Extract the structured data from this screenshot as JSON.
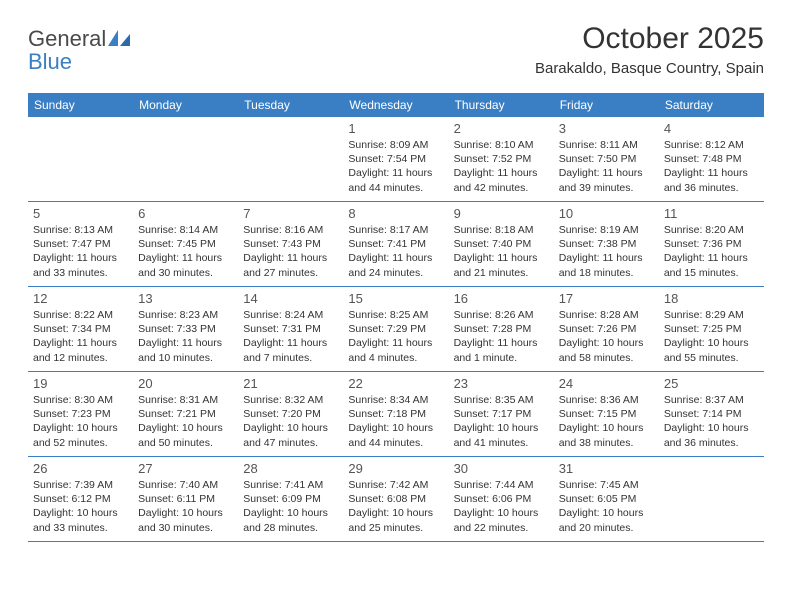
{
  "logo": {
    "text_gray": "General",
    "text_blue": "Blue"
  },
  "title": "October 2025",
  "location": "Barakaldo, Basque Country, Spain",
  "colors": {
    "header_bg": "#3a7fc4",
    "header_text": "#ffffff",
    "row_border": "#3a7fc4",
    "day_num": "#555555",
    "body_text": "#333333",
    "logo_gray": "#4a4a4a",
    "logo_blue": "#3a7fc4"
  },
  "day_headers": [
    "Sunday",
    "Monday",
    "Tuesday",
    "Wednesday",
    "Thursday",
    "Friday",
    "Saturday"
  ],
  "weeks": [
    [
      {
        "n": "",
        "sr": "",
        "ss": "",
        "dl": ""
      },
      {
        "n": "",
        "sr": "",
        "ss": "",
        "dl": ""
      },
      {
        "n": "",
        "sr": "",
        "ss": "",
        "dl": ""
      },
      {
        "n": "1",
        "sr": "Sunrise: 8:09 AM",
        "ss": "Sunset: 7:54 PM",
        "dl": "Daylight: 11 hours and 44 minutes."
      },
      {
        "n": "2",
        "sr": "Sunrise: 8:10 AM",
        "ss": "Sunset: 7:52 PM",
        "dl": "Daylight: 11 hours and 42 minutes."
      },
      {
        "n": "3",
        "sr": "Sunrise: 8:11 AM",
        "ss": "Sunset: 7:50 PM",
        "dl": "Daylight: 11 hours and 39 minutes."
      },
      {
        "n": "4",
        "sr": "Sunrise: 8:12 AM",
        "ss": "Sunset: 7:48 PM",
        "dl": "Daylight: 11 hours and 36 minutes."
      }
    ],
    [
      {
        "n": "5",
        "sr": "Sunrise: 8:13 AM",
        "ss": "Sunset: 7:47 PM",
        "dl": "Daylight: 11 hours and 33 minutes."
      },
      {
        "n": "6",
        "sr": "Sunrise: 8:14 AM",
        "ss": "Sunset: 7:45 PM",
        "dl": "Daylight: 11 hours and 30 minutes."
      },
      {
        "n": "7",
        "sr": "Sunrise: 8:16 AM",
        "ss": "Sunset: 7:43 PM",
        "dl": "Daylight: 11 hours and 27 minutes."
      },
      {
        "n": "8",
        "sr": "Sunrise: 8:17 AM",
        "ss": "Sunset: 7:41 PM",
        "dl": "Daylight: 11 hours and 24 minutes."
      },
      {
        "n": "9",
        "sr": "Sunrise: 8:18 AM",
        "ss": "Sunset: 7:40 PM",
        "dl": "Daylight: 11 hours and 21 minutes."
      },
      {
        "n": "10",
        "sr": "Sunrise: 8:19 AM",
        "ss": "Sunset: 7:38 PM",
        "dl": "Daylight: 11 hours and 18 minutes."
      },
      {
        "n": "11",
        "sr": "Sunrise: 8:20 AM",
        "ss": "Sunset: 7:36 PM",
        "dl": "Daylight: 11 hours and 15 minutes."
      }
    ],
    [
      {
        "n": "12",
        "sr": "Sunrise: 8:22 AM",
        "ss": "Sunset: 7:34 PM",
        "dl": "Daylight: 11 hours and 12 minutes."
      },
      {
        "n": "13",
        "sr": "Sunrise: 8:23 AM",
        "ss": "Sunset: 7:33 PM",
        "dl": "Daylight: 11 hours and 10 minutes."
      },
      {
        "n": "14",
        "sr": "Sunrise: 8:24 AM",
        "ss": "Sunset: 7:31 PM",
        "dl": "Daylight: 11 hours and 7 minutes."
      },
      {
        "n": "15",
        "sr": "Sunrise: 8:25 AM",
        "ss": "Sunset: 7:29 PM",
        "dl": "Daylight: 11 hours and 4 minutes."
      },
      {
        "n": "16",
        "sr": "Sunrise: 8:26 AM",
        "ss": "Sunset: 7:28 PM",
        "dl": "Daylight: 11 hours and 1 minute."
      },
      {
        "n": "17",
        "sr": "Sunrise: 8:28 AM",
        "ss": "Sunset: 7:26 PM",
        "dl": "Daylight: 10 hours and 58 minutes."
      },
      {
        "n": "18",
        "sr": "Sunrise: 8:29 AM",
        "ss": "Sunset: 7:25 PM",
        "dl": "Daylight: 10 hours and 55 minutes."
      }
    ],
    [
      {
        "n": "19",
        "sr": "Sunrise: 8:30 AM",
        "ss": "Sunset: 7:23 PM",
        "dl": "Daylight: 10 hours and 52 minutes."
      },
      {
        "n": "20",
        "sr": "Sunrise: 8:31 AM",
        "ss": "Sunset: 7:21 PM",
        "dl": "Daylight: 10 hours and 50 minutes."
      },
      {
        "n": "21",
        "sr": "Sunrise: 8:32 AM",
        "ss": "Sunset: 7:20 PM",
        "dl": "Daylight: 10 hours and 47 minutes."
      },
      {
        "n": "22",
        "sr": "Sunrise: 8:34 AM",
        "ss": "Sunset: 7:18 PM",
        "dl": "Daylight: 10 hours and 44 minutes."
      },
      {
        "n": "23",
        "sr": "Sunrise: 8:35 AM",
        "ss": "Sunset: 7:17 PM",
        "dl": "Daylight: 10 hours and 41 minutes."
      },
      {
        "n": "24",
        "sr": "Sunrise: 8:36 AM",
        "ss": "Sunset: 7:15 PM",
        "dl": "Daylight: 10 hours and 38 minutes."
      },
      {
        "n": "25",
        "sr": "Sunrise: 8:37 AM",
        "ss": "Sunset: 7:14 PM",
        "dl": "Daylight: 10 hours and 36 minutes."
      }
    ],
    [
      {
        "n": "26",
        "sr": "Sunrise: 7:39 AM",
        "ss": "Sunset: 6:12 PM",
        "dl": "Daylight: 10 hours and 33 minutes."
      },
      {
        "n": "27",
        "sr": "Sunrise: 7:40 AM",
        "ss": "Sunset: 6:11 PM",
        "dl": "Daylight: 10 hours and 30 minutes."
      },
      {
        "n": "28",
        "sr": "Sunrise: 7:41 AM",
        "ss": "Sunset: 6:09 PM",
        "dl": "Daylight: 10 hours and 28 minutes."
      },
      {
        "n": "29",
        "sr": "Sunrise: 7:42 AM",
        "ss": "Sunset: 6:08 PM",
        "dl": "Daylight: 10 hours and 25 minutes."
      },
      {
        "n": "30",
        "sr": "Sunrise: 7:44 AM",
        "ss": "Sunset: 6:06 PM",
        "dl": "Daylight: 10 hours and 22 minutes."
      },
      {
        "n": "31",
        "sr": "Sunrise: 7:45 AM",
        "ss": "Sunset: 6:05 PM",
        "dl": "Daylight: 10 hours and 20 minutes."
      },
      {
        "n": "",
        "sr": "",
        "ss": "",
        "dl": ""
      }
    ]
  ]
}
